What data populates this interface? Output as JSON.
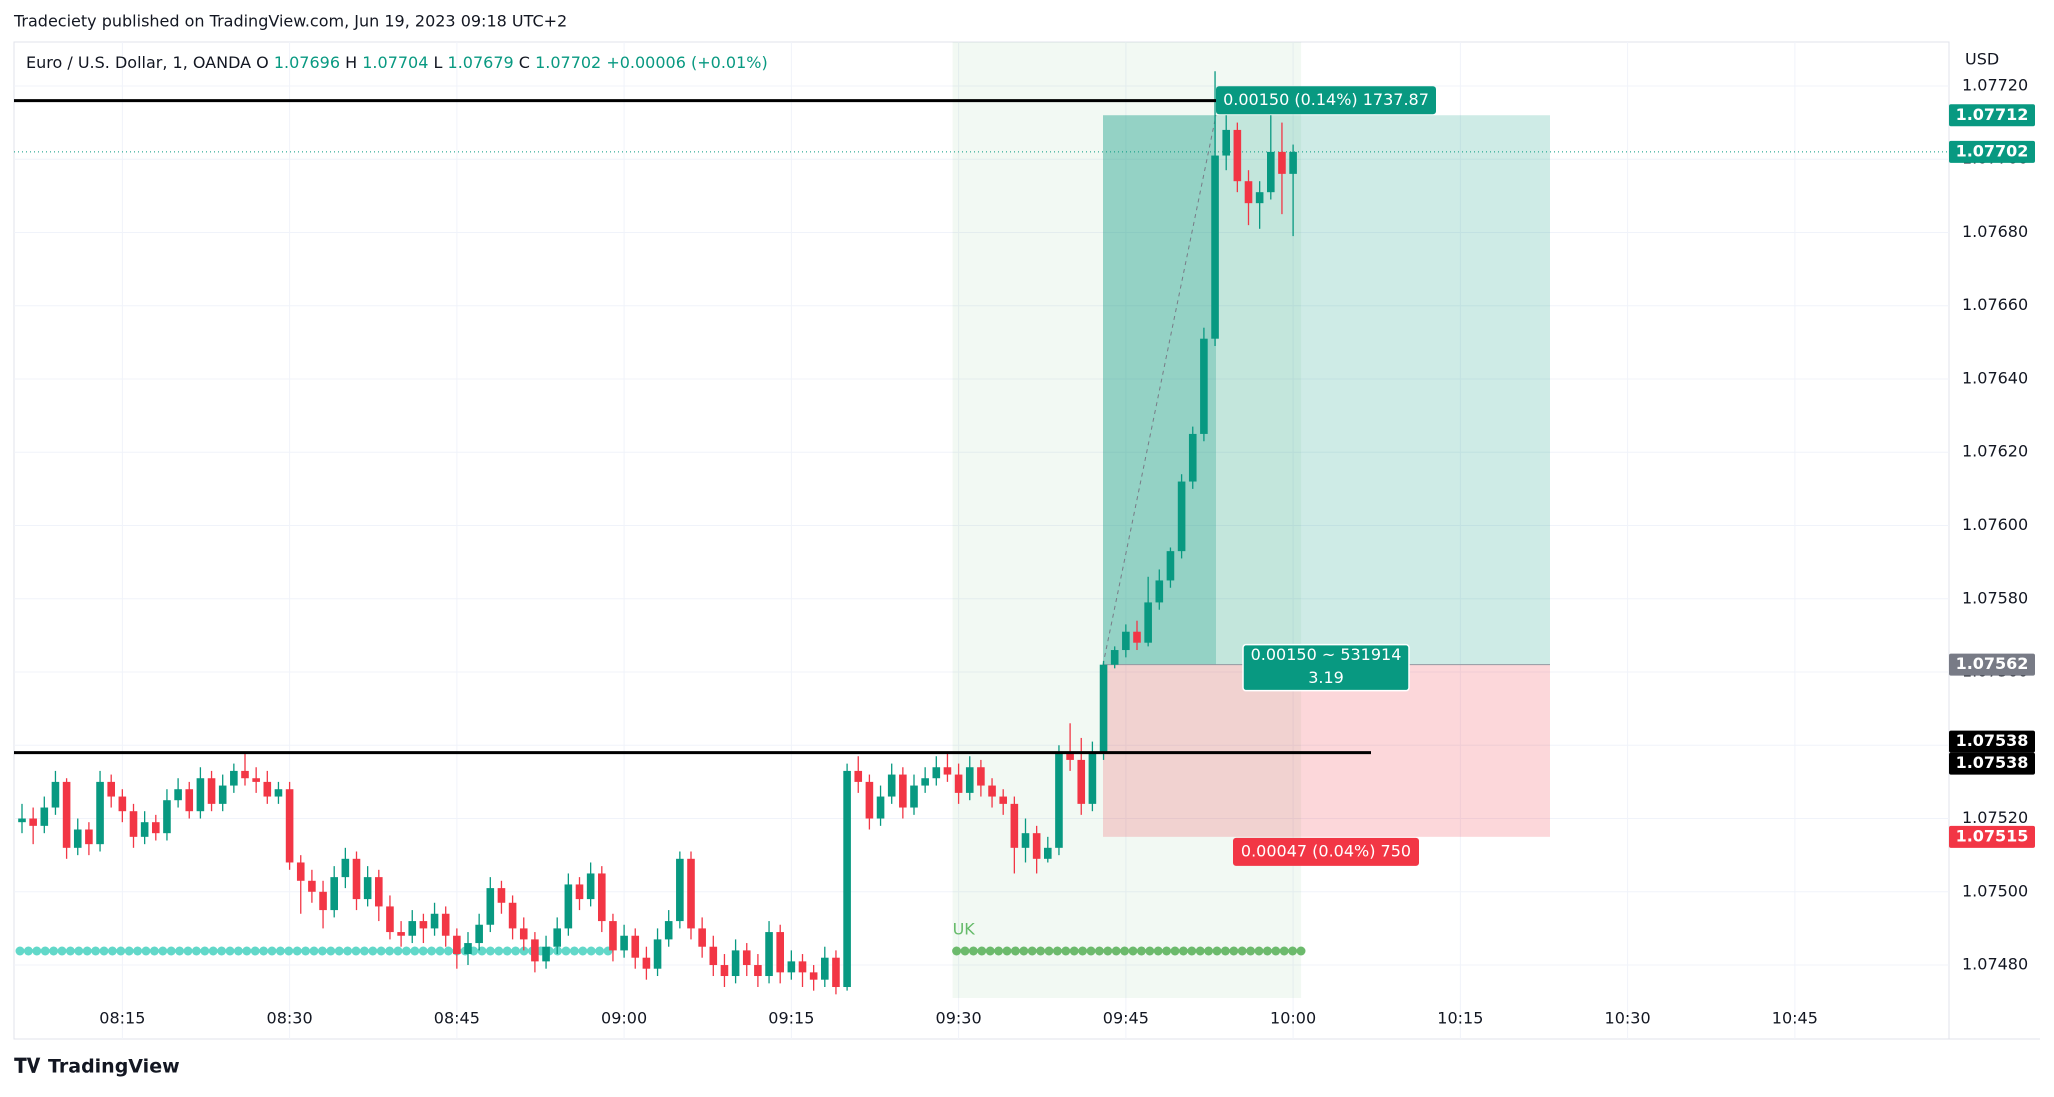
{
  "chart_data": {
    "type": "candlestick",
    "published": "Tradeciety published on TradingView.com, Jun 19, 2023 09:18 UTC+2",
    "symbol": "Euro / U.S. Dollar, 1, OANDA",
    "legend": [
      [
        "O",
        "1.07696"
      ],
      [
        "H",
        "1.07704"
      ],
      [
        "L",
        "1.07679"
      ],
      [
        "C",
        "1.07702"
      ]
    ],
    "change": "+0.00006 (+0.01%)",
    "currency": "USD",
    "brand": "TradingView",
    "session_label": "UK",
    "up_color": "#089981",
    "down_color": "#f23645",
    "open": [
      1.07519,
      1.0752,
      1.07518,
      1.07523,
      1.0753,
      1.07512,
      1.07517,
      1.07513,
      1.0753,
      1.07526,
      1.07522,
      1.07515,
      1.07519,
      1.07516,
      1.07525,
      1.07528,
      1.07522,
      1.07531,
      1.07524,
      1.07529,
      1.07533,
      1.07531,
      1.0753,
      1.07526,
      1.07528,
      1.07508,
      1.07503,
      1.075,
      1.07495,
      1.07504,
      1.07509,
      1.07498,
      1.07504,
      1.07496,
      1.07489,
      1.07488,
      1.07492,
      1.0749,
      1.07494,
      1.07488,
      1.07483,
      1.07486,
      1.07491,
      1.07501,
      1.07497,
      1.0749,
      1.07487,
      1.07481,
      1.07485,
      1.0749,
      1.07502,
      1.07498,
      1.07505,
      1.07492,
      1.07484,
      1.07488,
      1.07482,
      1.07479,
      1.07487,
      1.07492,
      1.07509,
      1.0749,
      1.07485,
      1.0748,
      1.07477,
      1.07484,
      1.0748,
      1.07477,
      1.07489,
      1.07478,
      1.07481,
      1.07478,
      1.07476,
      1.07482,
      1.07474,
      1.07533,
      1.0753,
      1.0752,
      1.07526,
      1.07532,
      1.07523,
      1.07529,
      1.07531,
      1.07534,
      1.07532,
      1.07527,
      1.07534,
      1.07529,
      1.07526,
      1.07524,
      1.07512,
      1.07516,
      1.07509,
      1.07512,
      1.07538,
      1.07536,
      1.07524,
      1.07538,
      1.07562,
      1.07566,
      1.07571,
      1.07568,
      1.07579,
      1.07585,
      1.07593,
      1.07612,
      1.07625,
      1.07651,
      1.07701,
      1.07708,
      1.07694,
      1.07688,
      1.07691,
      1.07702,
      1.07696
    ],
    "high": [
      1.07524,
      1.07523,
      1.07526,
      1.07533,
      1.07531,
      1.0752,
      1.07519,
      1.07533,
      1.07532,
      1.07528,
      1.07524,
      1.07522,
      1.07521,
      1.07528,
      1.07531,
      1.0753,
      1.07534,
      1.07533,
      1.07532,
      1.07535,
      1.07538,
      1.07534,
      1.07533,
      1.0753,
      1.0753,
      1.0751,
      1.07506,
      1.07503,
      1.07507,
      1.07512,
      1.07511,
      1.07507,
      1.07506,
      1.07499,
      1.07492,
      1.07495,
      1.07494,
      1.07497,
      1.07496,
      1.0749,
      1.07489,
      1.07494,
      1.07504,
      1.07503,
      1.07499,
      1.07493,
      1.07489,
      1.07488,
      1.07493,
      1.07505,
      1.07504,
      1.07508,
      1.07507,
      1.07494,
      1.07491,
      1.0749,
      1.07485,
      1.0749,
      1.07495,
      1.07511,
      1.07511,
      1.07493,
      1.07488,
      1.07483,
      1.07487,
      1.07486,
      1.07483,
      1.07492,
      1.07491,
      1.07484,
      1.07483,
      1.0748,
      1.07485,
      1.07484,
      1.07535,
      1.07537,
      1.07532,
      1.07529,
      1.07535,
      1.07534,
      1.07532,
      1.07534,
      1.07537,
      1.07538,
      1.07535,
      1.07537,
      1.07536,
      1.07531,
      1.07528,
      1.07526,
      1.0752,
      1.07518,
      1.07515,
      1.0754,
      1.07546,
      1.07542,
      1.07541,
      1.07563,
      1.07567,
      1.07573,
      1.07574,
      1.07586,
      1.07588,
      1.07594,
      1.07614,
      1.07627,
      1.07654,
      1.07724,
      1.07712,
      1.0771,
      1.07697,
      1.07694,
      1.07712,
      1.0771,
      1.07704
    ],
    "low": [
      1.07516,
      1.07513,
      1.07516,
      1.07521,
      1.07509,
      1.0751,
      1.0751,
      1.07511,
      1.07523,
      1.07519,
      1.07512,
      1.07513,
      1.07514,
      1.07514,
      1.07523,
      1.0752,
      1.0752,
      1.07522,
      1.07522,
      1.07527,
      1.07529,
      1.07527,
      1.07524,
      1.07524,
      1.07506,
      1.07494,
      1.07497,
      1.0749,
      1.07493,
      1.07501,
      1.07495,
      1.07496,
      1.07492,
      1.07487,
      1.07485,
      1.07486,
      1.07486,
      1.07488,
      1.07485,
      1.07479,
      1.0748,
      1.07484,
      1.07489,
      1.07494,
      1.07487,
      1.07484,
      1.07478,
      1.07479,
      1.07483,
      1.07488,
      1.07495,
      1.07496,
      1.07489,
      1.07481,
      1.07482,
      1.07479,
      1.07476,
      1.07477,
      1.07485,
      1.0749,
      1.07487,
      1.07482,
      1.07477,
      1.07474,
      1.07475,
      1.07477,
      1.07474,
      1.07475,
      1.07475,
      1.07476,
      1.07474,
      1.07473,
      1.07474,
      1.07472,
      1.07473,
      1.07527,
      1.07517,
      1.07518,
      1.07524,
      1.0752,
      1.07521,
      1.07527,
      1.07529,
      1.0753,
      1.07524,
      1.07525,
      1.07526,
      1.07523,
      1.07521,
      1.07505,
      1.07508,
      1.07505,
      1.07508,
      1.0751,
      1.07533,
      1.07521,
      1.07522,
      1.07536,
      1.07561,
      1.07564,
      1.07566,
      1.07567,
      1.07577,
      1.07583,
      1.07591,
      1.0761,
      1.07623,
      1.07649,
      1.07697,
      1.07691,
      1.07682,
      1.07681,
      1.07689,
      1.07685,
      1.07679
    ],
    "close": [
      1.0752,
      1.07518,
      1.07523,
      1.0753,
      1.07512,
      1.07517,
      1.07513,
      1.0753,
      1.07526,
      1.07522,
      1.07515,
      1.07519,
      1.07516,
      1.07525,
      1.07528,
      1.07522,
      1.07531,
      1.07524,
      1.07529,
      1.07533,
      1.07531,
      1.0753,
      1.07526,
      1.07528,
      1.07508,
      1.07503,
      1.075,
      1.07495,
      1.07504,
      1.07509,
      1.07498,
      1.07504,
      1.07496,
      1.07489,
      1.07488,
      1.07492,
      1.0749,
      1.07494,
      1.07488,
      1.07483,
      1.07486,
      1.07491,
      1.07501,
      1.07497,
      1.0749,
      1.07487,
      1.07481,
      1.07485,
      1.0749,
      1.07502,
      1.07498,
      1.07505,
      1.07492,
      1.07484,
      1.07488,
      1.07482,
      1.07479,
      1.07487,
      1.07492,
      1.07509,
      1.0749,
      1.07485,
      1.0748,
      1.07477,
      1.07484,
      1.0748,
      1.07477,
      1.07489,
      1.07478,
      1.07481,
      1.07478,
      1.07476,
      1.07482,
      1.07474,
      1.07533,
      1.0753,
      1.0752,
      1.07526,
      1.07532,
      1.07523,
      1.07529,
      1.07531,
      1.07534,
      1.07532,
      1.07527,
      1.07534,
      1.07529,
      1.07526,
      1.07524,
      1.07512,
      1.07516,
      1.07509,
      1.07512,
      1.07538,
      1.07536,
      1.07524,
      1.07538,
      1.07562,
      1.07566,
      1.07571,
      1.07568,
      1.07579,
      1.07585,
      1.07593,
      1.07612,
      1.07625,
      1.07651,
      1.07701,
      1.07708,
      1.07694,
      1.07688,
      1.07691,
      1.07702,
      1.07696,
      1.07702
    ],
    "ylim": [
      1.07471,
      1.07732
    ],
    "yticks": [
      {
        "value": 1.0748,
        "label": "1.07480"
      },
      {
        "value": 1.075,
        "label": "1.07500"
      },
      {
        "value": 1.0752,
        "label": "1.07520"
      },
      {
        "value": 1.0754,
        "label": "1.07540"
      },
      {
        "value": 1.0756,
        "label": "1.07560"
      },
      {
        "value": 1.0758,
        "label": "1.07580"
      },
      {
        "value": 1.076,
        "label": "1.07600"
      },
      {
        "value": 1.0762,
        "label": "1.07620"
      },
      {
        "value": 1.0764,
        "label": "1.07640"
      },
      {
        "value": 1.0766,
        "label": "1.07660"
      },
      {
        "value": 1.0768,
        "label": "1.07680"
      },
      {
        "value": 1.077,
        "label": "1.07700"
      },
      {
        "value": 1.0772,
        "label": "1.07720"
      }
    ],
    "xticks": [
      "08:15",
      "08:30",
      "08:45",
      "09:00",
      "09:15",
      "09:30",
      "09:45",
      "10:00",
      "10:15",
      "10:30",
      "10:45"
    ],
    "hlines": [
      1.07716,
      1.07538
    ],
    "current_price": 1.07702,
    "price_labels": [
      {
        "value": 1.07712,
        "color": "#089981"
      },
      {
        "value": 1.07702,
        "color": "#089981"
      },
      {
        "value": 1.07562,
        "color": "#787b86"
      },
      {
        "value": 1.07538,
        "color": "#000000"
      },
      {
        "value": 1.07538,
        "color": "#000000"
      },
      {
        "value": 1.07515,
        "color": "#f23645"
      }
    ],
    "position": {
      "target": 1.07712,
      "entry": 1.07562,
      "stop": 1.07515,
      "target_label": "0.00150 (0.14%) 1737.87",
      "entry_label": "0.00150 ~ 531914",
      "ratio": "3.19",
      "stop_label": "0.00047 (0.04%) 750"
    }
  }
}
